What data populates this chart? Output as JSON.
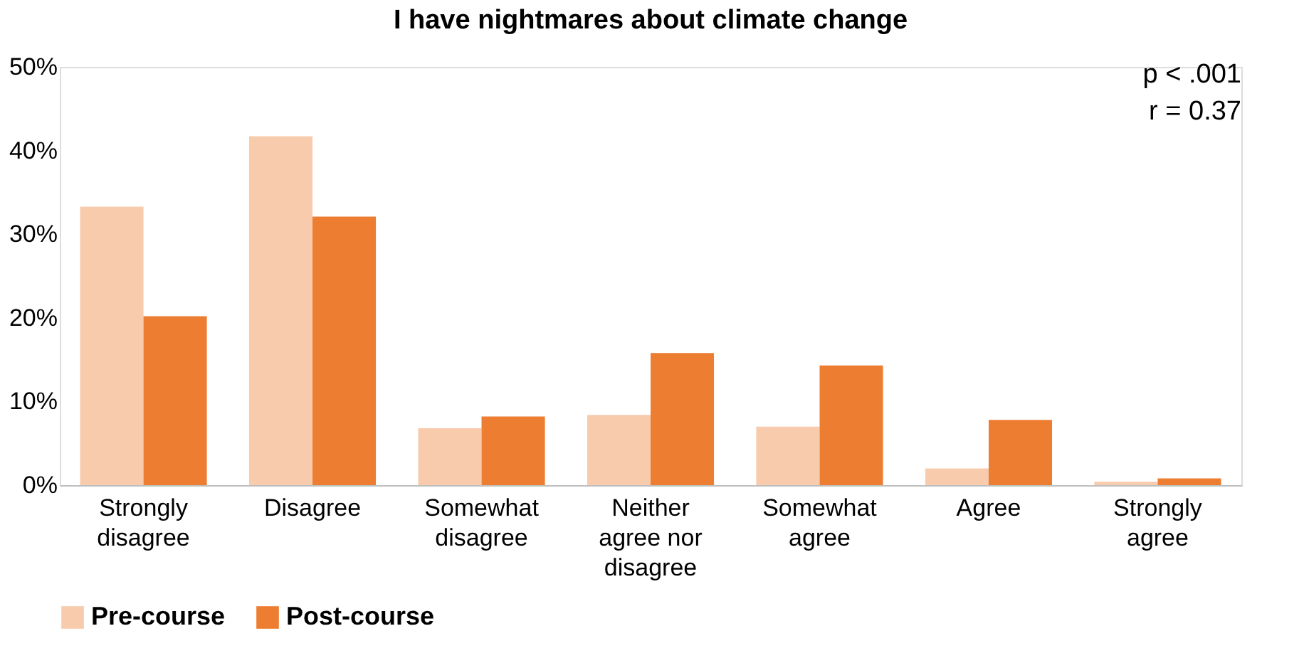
{
  "chart_data": {
    "type": "bar",
    "title": "I have nightmares about climate change",
    "categories": [
      "Strongly disagree",
      "Disagree",
      "Somewhat disagree",
      "Neither agree nor disagree",
      "Somewhat agree",
      "Agree",
      "Strongly agree"
    ],
    "series": [
      {
        "name": "Pre-course",
        "color": "#f8cbad",
        "values": [
          33.3,
          41.7,
          6.8,
          8.4,
          7.0,
          2.0,
          0.4
        ]
      },
      {
        "name": "Post-course",
        "color": "#ed7d31",
        "values": [
          20.2,
          32.1,
          8.2,
          15.8,
          14.3,
          7.8,
          0.8
        ]
      }
    ],
    "ylim": [
      0,
      50
    ],
    "yticks": [
      {
        "value": 0,
        "label": "0%"
      },
      {
        "value": 10,
        "label": "10%"
      },
      {
        "value": 20,
        "label": "20%"
      },
      {
        "value": 30,
        "label": "30%"
      },
      {
        "value": 40,
        "label": "40%"
      },
      {
        "value": 50,
        "label": "50%"
      }
    ],
    "grid": false,
    "legend": "bottom",
    "annotations": [
      "p < .001",
      "r = 0.37"
    ]
  }
}
